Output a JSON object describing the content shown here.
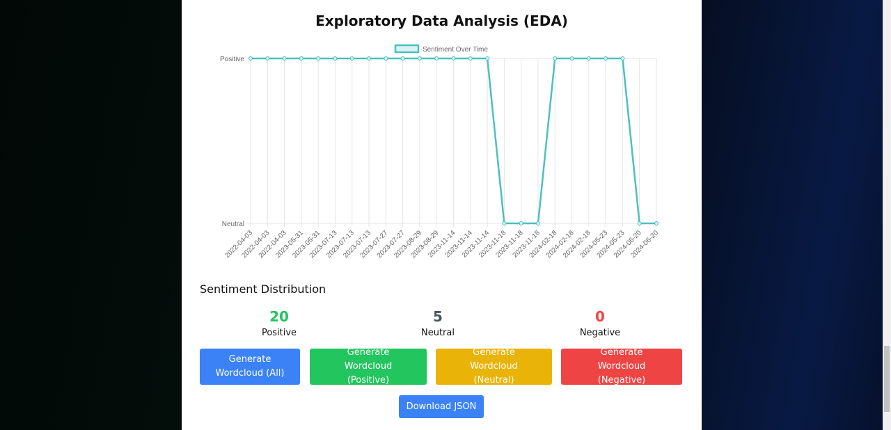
{
  "page": {
    "title": "Exploratory Data Analysis (EDA)"
  },
  "chart_data": {
    "type": "line",
    "legend": "Sentiment Over Time",
    "legend_position": "top",
    "y_categories": [
      "Neutral",
      "Positive"
    ],
    "x": [
      "2022-04-03",
      "2022-04-03",
      "2022-04-03",
      "2023-05-31",
      "2023-05-31",
      "2023-07-13",
      "2023-07-13",
      "2023-07-13",
      "2023-07-27",
      "2023-07-27",
      "2023-08-29",
      "2023-08-29",
      "2023-11-14",
      "2023-11-14",
      "2023-11-14",
      "2023-11-18",
      "2023-11-18",
      "2023-11-18",
      "2024-02-18",
      "2024-02-18",
      "2024-02-18",
      "2024-05-23",
      "2024-05-23",
      "2024-06-20",
      "2024-06-20"
    ],
    "values": [
      "Positive",
      "Positive",
      "Positive",
      "Positive",
      "Positive",
      "Positive",
      "Positive",
      "Positive",
      "Positive",
      "Positive",
      "Positive",
      "Positive",
      "Positive",
      "Positive",
      "Positive",
      "Neutral",
      "Neutral",
      "Neutral",
      "Positive",
      "Positive",
      "Positive",
      "Positive",
      "Positive",
      "Neutral",
      "Neutral"
    ],
    "color": "#4bc0c0",
    "grid": true
  },
  "distribution": {
    "title": "Sentiment Distribution",
    "stats": [
      {
        "value": "20",
        "label": "Positive",
        "color": "#22c55e"
      },
      {
        "value": "5",
        "label": "Neutral",
        "color": "#4b5563"
      },
      {
        "value": "0",
        "label": "Negative",
        "color": "#ef4444"
      }
    ]
  },
  "buttons": {
    "all": "Generate Wordcloud (All)",
    "positive": "Generate Wordcloud (Positive)",
    "neutral": "Generate Wordcloud (Neutral)",
    "negative": "Generate Wordcloud (Negative)",
    "download": "Download JSON"
  }
}
